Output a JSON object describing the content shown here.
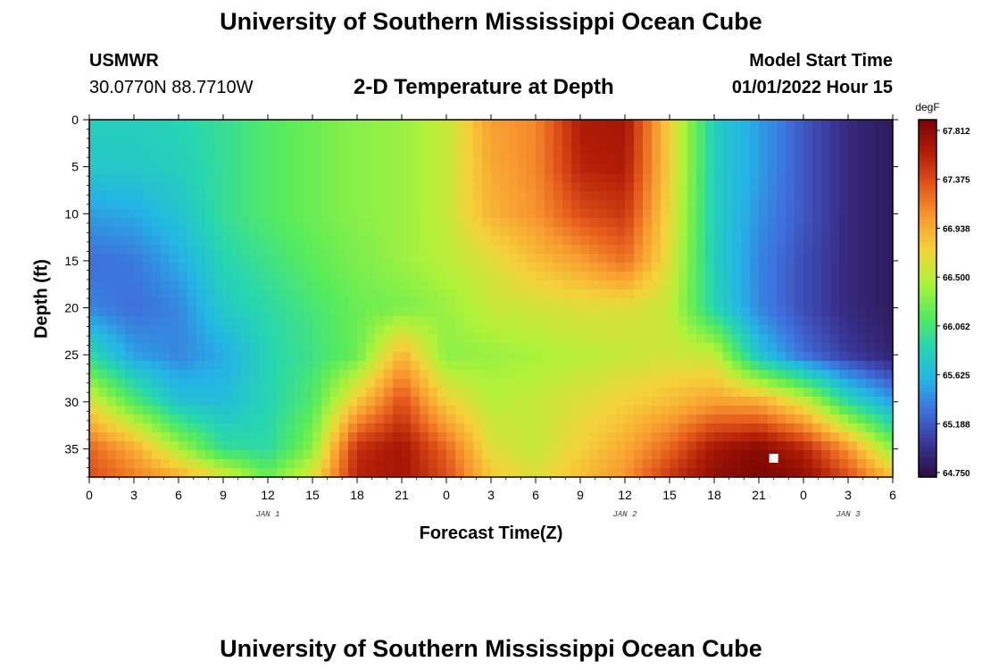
{
  "header": {
    "title_top": "University of Southern Mississippi Ocean Cube",
    "station": "USMWR",
    "coords": "30.0770N  88.7710W",
    "subtitle": "2-D Temperature at Depth",
    "model_start_label": "Model Start Time",
    "model_start_value": "01/01/2022 Hour 15",
    "title_bottom": "University of Southern Mississippi Ocean Cube"
  },
  "chart_data": {
    "type": "heatmap",
    "title": "2-D Temperature at Depth",
    "xlabel": "Forecast Time(Z)",
    "ylabel": "Depth (ft)",
    "x_range_hours": [
      0,
      54
    ],
    "y_range_ft": [
      0,
      38
    ],
    "x_tick_labels": [
      "0",
      "3",
      "6",
      "9",
      "12",
      "15",
      "18",
      "21",
      "0",
      "3",
      "6",
      "9",
      "12",
      "15",
      "18",
      "21",
      "0",
      "3",
      "6"
    ],
    "y_tick_values": [
      0,
      5,
      10,
      15,
      20,
      25,
      30,
      35
    ],
    "date_labels": [
      {
        "label": "JAN 1",
        "hour": 12
      },
      {
        "label": "JAN 2",
        "hour": 36
      },
      {
        "label": "JAN 3",
        "hour": 51
      }
    ],
    "colorbar": {
      "unit": "degF",
      "min": 64.75,
      "max": 67.812,
      "tick_labels": [
        "67.812",
        "67.375",
        "66.938",
        "66.500",
        "66.062",
        "65.625",
        "65.188",
        "64.750"
      ],
      "colors": [
        "#2a0d3c",
        "#3a3496",
        "#3f6fdc",
        "#24b4e6",
        "#26d6b0",
        "#59ec5a",
        "#b0f23a",
        "#f5d23a",
        "#f89a30",
        "#e2561a",
        "#b01c06",
        "#7a0404"
      ]
    },
    "grid_hours": [
      0,
      3,
      6,
      9,
      12,
      15,
      18,
      21,
      24,
      27,
      30,
      33,
      36,
      39,
      42,
      45,
      48,
      51,
      54
    ],
    "grid_depths": [
      0,
      5,
      10,
      15,
      20,
      25,
      30,
      35,
      38
    ],
    "temperature_grid_degF": [
      [
        65.8,
        65.8,
        65.85,
        65.95,
        66.1,
        66.2,
        66.3,
        66.35,
        66.5,
        66.95,
        67.05,
        67.55,
        67.6,
        66.7,
        65.8,
        65.5,
        65.2,
        64.95,
        64.85
      ],
      [
        65.75,
        65.75,
        65.8,
        65.95,
        66.1,
        66.2,
        66.3,
        66.35,
        66.5,
        66.9,
        67.05,
        67.5,
        67.55,
        66.7,
        65.8,
        65.5,
        65.2,
        64.95,
        64.85
      ],
      [
        65.5,
        65.55,
        65.7,
        65.95,
        66.1,
        66.2,
        66.3,
        66.35,
        66.5,
        66.85,
        67.0,
        67.3,
        67.4,
        66.65,
        65.8,
        65.45,
        65.2,
        64.95,
        64.85
      ],
      [
        65.3,
        65.35,
        65.55,
        65.85,
        66.0,
        66.15,
        66.25,
        66.35,
        66.45,
        66.6,
        66.8,
        66.95,
        67.15,
        66.6,
        65.8,
        65.4,
        65.15,
        64.95,
        64.85
      ],
      [
        65.4,
        65.3,
        65.4,
        65.75,
        65.9,
        66.05,
        66.2,
        66.25,
        66.35,
        66.5,
        66.55,
        66.6,
        66.6,
        66.5,
        65.85,
        65.4,
        65.15,
        64.95,
        64.85
      ],
      [
        65.9,
        65.5,
        65.4,
        65.55,
        65.85,
        66.0,
        66.2,
        66.85,
        66.3,
        66.35,
        66.4,
        66.45,
        66.5,
        66.55,
        66.5,
        65.7,
        65.3,
        65.05,
        64.9
      ],
      [
        66.6,
        66.1,
        65.7,
        65.65,
        65.85,
        66.1,
        66.75,
        67.3,
        66.7,
        66.45,
        66.5,
        66.6,
        66.7,
        66.8,
        66.95,
        66.9,
        66.55,
        65.9,
        65.5
      ],
      [
        67.2,
        66.9,
        66.4,
        65.95,
        65.9,
        66.3,
        67.45,
        67.6,
        67.2,
        66.6,
        66.5,
        66.7,
        66.9,
        67.2,
        67.6,
        67.75,
        67.5,
        67.0,
        66.3
      ],
      [
        67.3,
        67.1,
        66.9,
        66.6,
        66.2,
        66.6,
        67.5,
        67.6,
        67.3,
        66.75,
        66.6,
        66.8,
        67.0,
        67.4,
        67.7,
        67.8,
        67.7,
        67.3,
        66.8
      ]
    ]
  }
}
